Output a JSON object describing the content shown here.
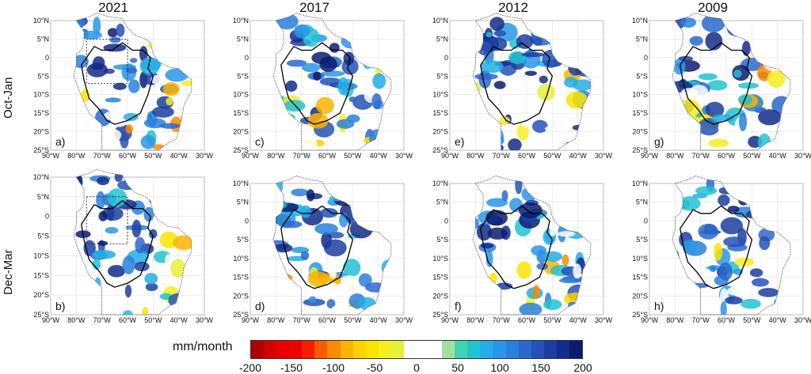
{
  "years": [
    "2021",
    "2017",
    "2012",
    "2009"
  ],
  "rows": [
    "Oct-Jan",
    "Dec-Mar"
  ],
  "panel_letters": [
    "a)",
    "c)",
    "e)",
    "g)",
    "b)",
    "d)",
    "f)",
    "h)"
  ],
  "lat_ticks": [
    "10°N",
    "5°N",
    "0",
    "5°S",
    "10°S",
    "15°S",
    "20°S",
    "25°S"
  ],
  "lon_ticks": [
    "90°W",
    "80°W",
    "70°W",
    "60°W",
    "50°W",
    "40°W",
    "30°W"
  ],
  "colorbar": {
    "label": "mm/month",
    "ticks": [
      "-200",
      "-150",
      "-100",
      "-50",
      "0",
      "50",
      "100",
      "150",
      "200"
    ],
    "colors": [
      "#b00000",
      "#d40000",
      "#e80000",
      "#f00000",
      "#f51e00",
      "#f85a00",
      "#fb8a00",
      "#fdb400",
      "#fed200",
      "#fbe400",
      "#f5ef20",
      "#e6f03a",
      "#ffffff",
      "#ffffff",
      "#ffffff",
      "#9fe0a0",
      "#44d2b0",
      "#22c2d0",
      "#22aee6",
      "#2a96e6",
      "#2a80dc",
      "#2a68cc",
      "#2452b8",
      "#1c3ea0",
      "#142c8a",
      "#0a1c70"
    ]
  }
}
